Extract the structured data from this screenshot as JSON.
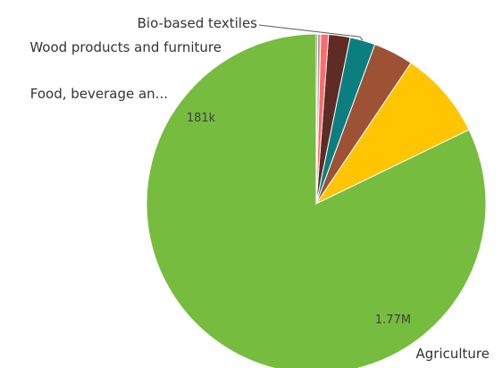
{
  "chart_data": {
    "type": "pie",
    "title": "",
    "start_angle_deg": 0,
    "direction": "clockwise",
    "slices": [
      {
        "name": "Agriculture",
        "value": 1770000,
        "color": "#76BC3F",
        "data_label": "1.77M",
        "outer_label": "Agriculture"
      },
      {
        "name": "Food, beverage and tobacco",
        "value": 181000,
        "color": "#FFC500",
        "data_label": "181k",
        "outer_label": "Food, beverage an..."
      },
      {
        "name": "Wood products and furniture",
        "value": 82000,
        "color": "#9D5135",
        "data_label": "",
        "outer_label": "Wood products and furniture"
      },
      {
        "name": "Bio-based textiles",
        "value": 52000,
        "color": "#0B7F80",
        "data_label": "",
        "outer_label": "Bio-based textiles"
      },
      {
        "name": "",
        "value": 44000,
        "color": "#5E2C24",
        "data_label": "",
        "outer_label": ""
      },
      {
        "name": "",
        "value": 16000,
        "color": "#FF6B6B",
        "data_label": "",
        "outer_label": ""
      },
      {
        "name": "",
        "value": 6000,
        "color": "#A5A5A5",
        "data_label": "",
        "outer_label": ""
      },
      {
        "name": "",
        "value": 3000,
        "color": "#6E6E6E",
        "data_label": "",
        "outer_label": ""
      }
    ]
  }
}
